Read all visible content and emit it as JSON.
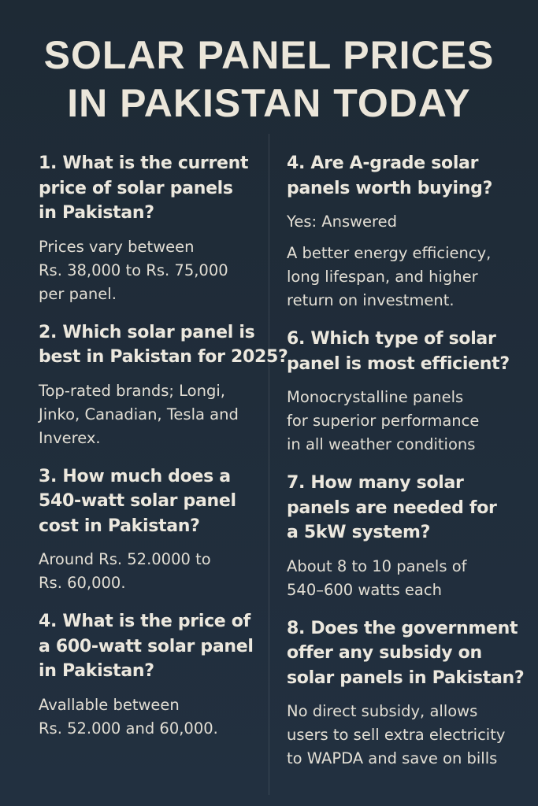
{
  "header": {
    "title": [
      "SOLAR PANEL PRICES",
      "IN PAKISTAN TODAY"
    ]
  },
  "columns": [
    [
      {
        "question": [
          "1. What is the current",
          "price of solar panels",
          "in Pakistan?"
        ],
        "answer": [
          [
            "Prices vary between",
            "Rs. 38,000 to Rs. 75,000",
            "per panel."
          ]
        ]
      },
      {
        "question": [
          "2. Which solar panel is",
          "best in Pakistan for 2025?"
        ],
        "answer": [
          [
            "Top-rated brands; Longi,",
            "Jinko, Canadian, Tesla and",
            "Inverex."
          ]
        ]
      },
      {
        "question": [
          "3. How much does a",
          "540-watt solar panel",
          "cost in Pakistan?"
        ],
        "answer": [
          [
            "Around Rs. 52.0000 to",
            "Rs. 60,000."
          ]
        ]
      },
      {
        "question": [
          "4. What is the price of",
          "a 600-watt solar panel",
          "in Pakistan?"
        ],
        "answer": [
          [
            "Avallable between",
            "Rs. 52.000 and 60,000."
          ]
        ]
      }
    ],
    [
      {
        "question": [
          "4. Are A-grade solar",
          "panels worth buying?"
        ],
        "answer": [
          [
            "Yes: Answered"
          ],
          [
            "A better energy efficiency,",
            "long lifespan, and higher",
            "return on investment."
          ]
        ]
      },
      {
        "question": [
          "6. Which type of solar",
          "panel is most efficient?"
        ],
        "answer": [
          [
            "Monocrystalline panels",
            "for superior performance",
            "in all weather conditions"
          ]
        ]
      },
      {
        "question": [
          "7. How many solar",
          "panels are needed for",
          "a 5kW system?"
        ],
        "answer": [
          [
            "About 8 to 10 panels of",
            "540–600 watts each"
          ]
        ]
      },
      {
        "question": [
          "8. Does the government",
          "offer any subsidy on",
          "solar panels in Pakistan?"
        ],
        "answer": [
          [
            "No direct subsidy, allows",
            "users to sell extra electricity",
            "to WAPDA and save on bills"
          ]
        ]
      }
    ]
  ]
}
